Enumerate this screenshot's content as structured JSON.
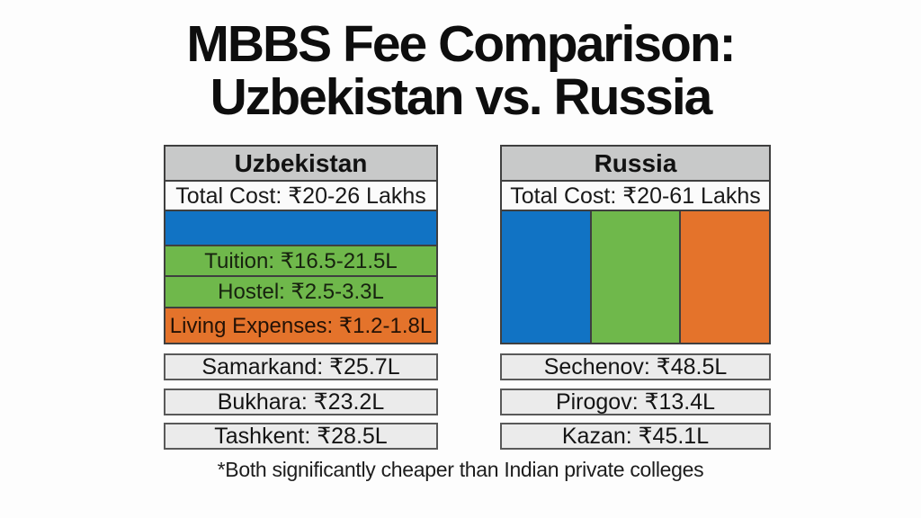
{
  "page": {
    "title_line1": "MBBS Fee Comparison:",
    "title_line2": "Uzbekistan vs. Russia",
    "footnote": "*Both significantly cheaper than Indian private colleges"
  },
  "uzbekistan": {
    "header": "Uzbekistan",
    "total": "Total Cost: ₹20-26 Lakhs",
    "tuition": "Tuition: ₹16.5-21.5L",
    "hostel": "Hostel: ₹2.5-3.3L",
    "living": "Living Expenses: ₹1.2-1.8L",
    "universities": [
      "Samarkand: ₹25.7L",
      "Bukhara: ₹23.2L",
      "Tashkent: ₹28.5L"
    ]
  },
  "russia": {
    "header": "Russia",
    "total": "Total Cost: ₹20-61 Lakhs",
    "universities": [
      "Sechenov: ₹48.5L",
      "Pirogov: ₹13.4L",
      "Kazan: ₹45.1L"
    ]
  },
  "colors": {
    "blue": "#1173c4",
    "green": "#6fb84b",
    "orange": "#e4732b",
    "header_gray": "#c8c9c9",
    "box_gray": "#ebebeb",
    "border_dark": "#3f3f3f"
  },
  "chart_data": {
    "type": "table",
    "title": "MBBS Fee Comparison: Uzbekistan vs. Russia",
    "currency_unit": "INR Lakhs",
    "groups": [
      {
        "name": "Uzbekistan",
        "total_cost_lakhs": [
          20,
          26
        ],
        "breakdown": [
          {
            "item": "Tuition",
            "range_lakhs": [
              16.5,
              21.5
            ],
            "color": "green"
          },
          {
            "item": "Hostel",
            "range_lakhs": [
              2.5,
              3.3
            ],
            "color": "green"
          },
          {
            "item": "Living Expenses",
            "range_lakhs": [
              1.2,
              1.8
            ],
            "color": "orange"
          }
        ],
        "universities": [
          {
            "name": "Samarkand",
            "fee_lakhs": 25.7
          },
          {
            "name": "Bukhara",
            "fee_lakhs": 23.2
          },
          {
            "name": "Tashkent",
            "fee_lakhs": 28.5
          }
        ]
      },
      {
        "name": "Russia",
        "total_cost_lakhs": [
          20,
          61
        ],
        "breakdown": [
          {
            "item": "unlabeled-blue-segment",
            "color": "blue"
          },
          {
            "item": "unlabeled-green-segment",
            "color": "green"
          },
          {
            "item": "unlabeled-orange-segment",
            "color": "orange"
          }
        ],
        "universities": [
          {
            "name": "Sechenov",
            "fee_lakhs": 48.5
          },
          {
            "name": "Pirogov",
            "fee_lakhs": 13.4
          },
          {
            "name": "Kazan",
            "fee_lakhs": 45.1
          }
        ]
      }
    ],
    "footnote": "*Both significantly cheaper than Indian private colleges"
  }
}
